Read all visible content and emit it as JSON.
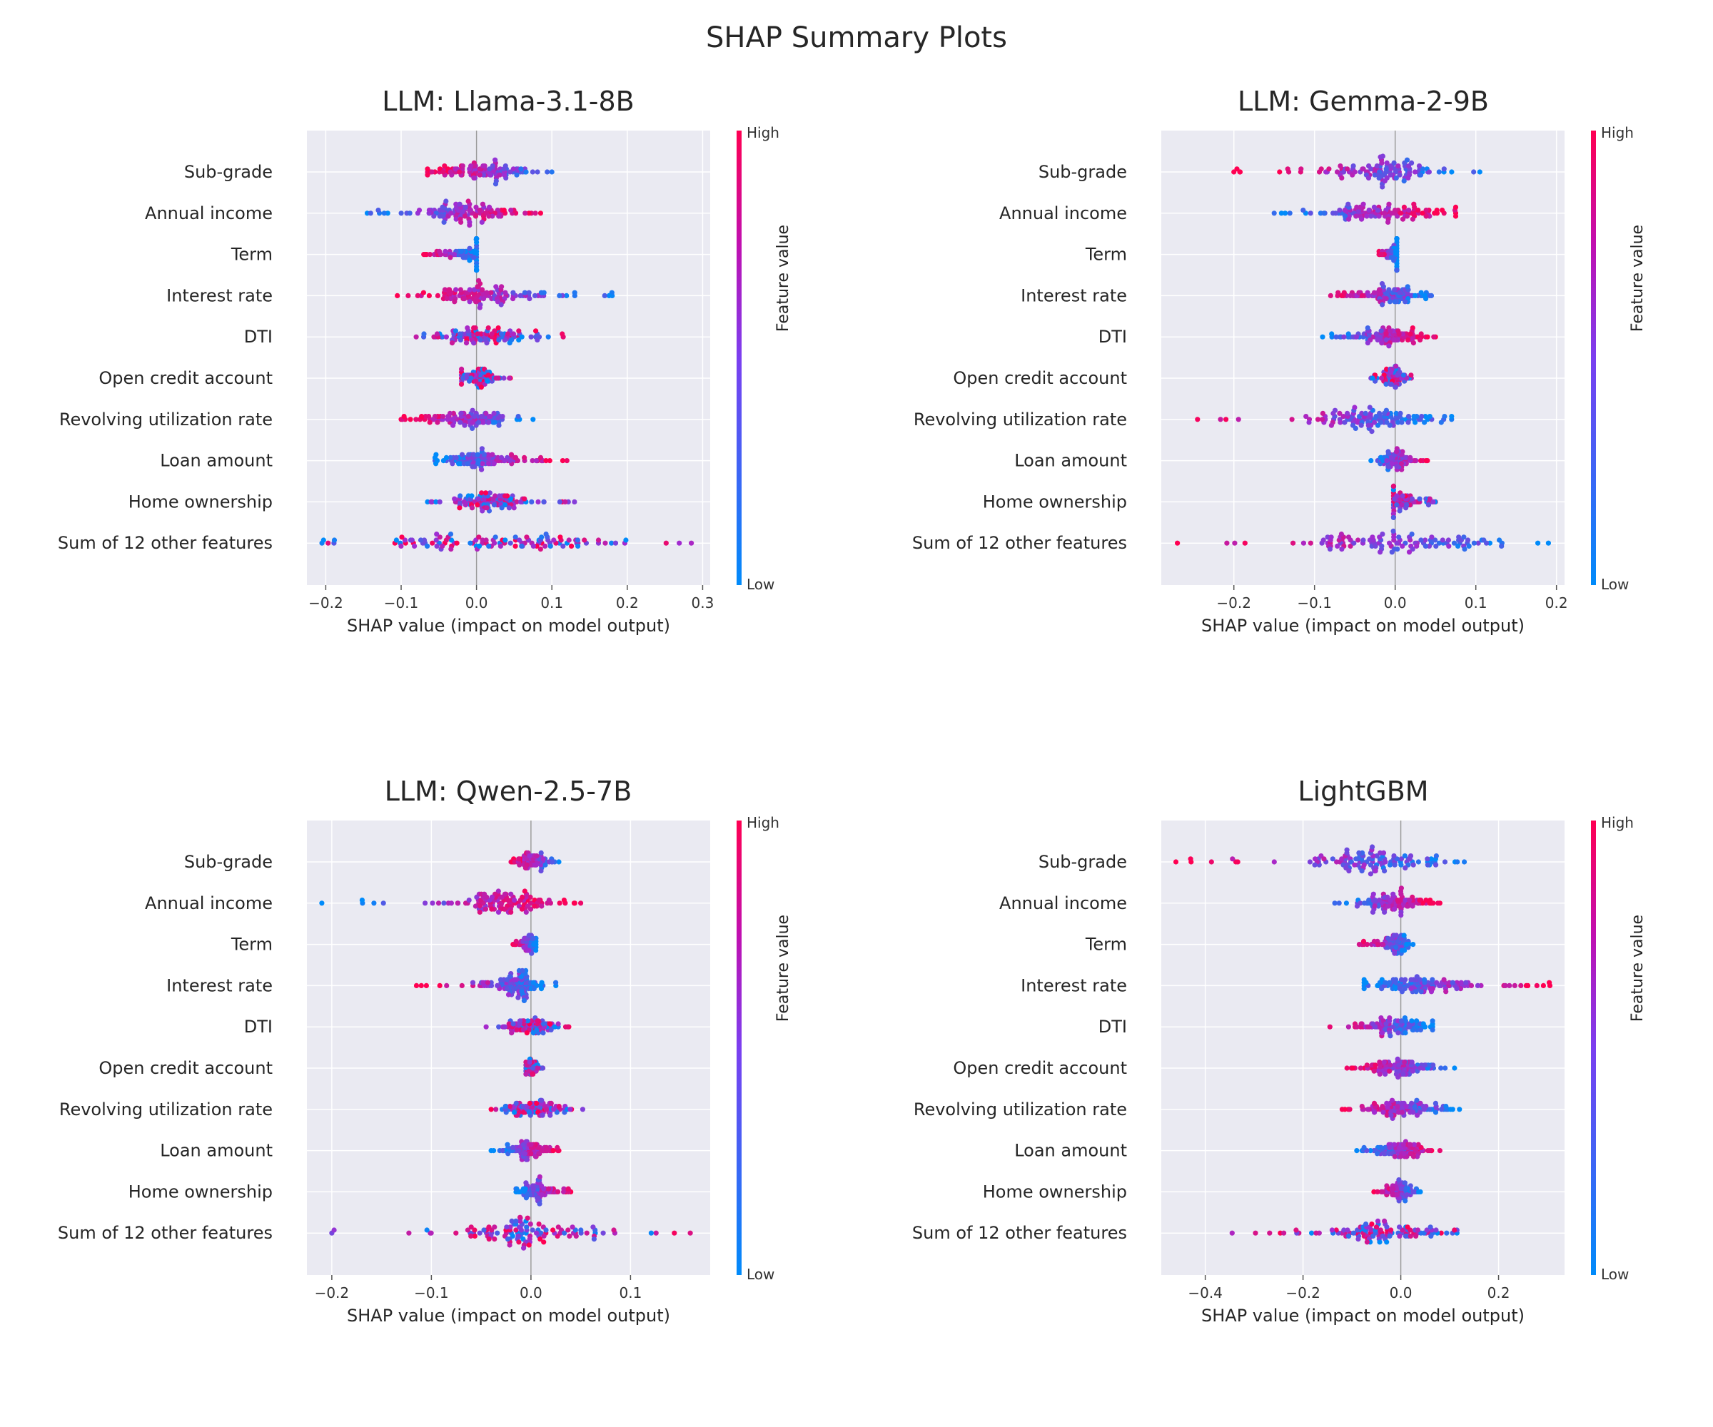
{
  "title": "SHAP Summary Plots",
  "colors": {
    "high": "#ff0052",
    "mid": "#a12cd2",
    "low": "#008bfa",
    "panel": "#eaeaf2",
    "grid": "#ffffff"
  },
  "chart_data": [
    {
      "type": "scatter",
      "title": "LLM: Llama-3.1-8B",
      "xlabel": "SHAP value (impact on model output)",
      "xlim": [
        -0.225,
        0.31
      ],
      "xticks": [
        -0.2,
        -0.1,
        0.0,
        0.1,
        0.2,
        0.3
      ],
      "xtick_labels": [
        "−0.2",
        "−0.1",
        "0.0",
        "0.1",
        "0.2",
        "0.3"
      ],
      "colorbar_label": "Feature value",
      "colorbar_high": "High",
      "colorbar_low": "Low",
      "features": [
        {
          "name": "Sub-grade",
          "min": -0.065,
          "max": 0.1,
          "direction": -1,
          "spread": 0.035
        },
        {
          "name": "Annual income",
          "min": -0.145,
          "max": 0.085,
          "direction": 1,
          "spread": 0.04
        },
        {
          "name": "Term",
          "min": -0.07,
          "max": 0.0,
          "direction": -1,
          "spread": 0.02
        },
        {
          "name": "Interest rate",
          "min": -0.105,
          "max": 0.18,
          "direction": -1,
          "spread": 0.05
        },
        {
          "name": "DTI",
          "min": -0.08,
          "max": 0.115,
          "direction": 0,
          "spread": 0.035
        },
        {
          "name": "Open credit account",
          "min": -0.02,
          "max": 0.045,
          "direction": 0,
          "spread": 0.012
        },
        {
          "name": "Revolving utilization rate",
          "min": -0.1,
          "max": 0.075,
          "direction": -1,
          "spread": 0.03
        },
        {
          "name": "Loan amount",
          "min": -0.055,
          "max": 0.12,
          "direction": 1,
          "spread": 0.035
        },
        {
          "name": "Home ownership",
          "min": -0.065,
          "max": 0.13,
          "direction": 0,
          "spread": 0.03
        },
        {
          "name": "Sum of 12 other features",
          "min": -0.205,
          "max": 0.285,
          "direction": 0,
          "spread": 0.09
        }
      ]
    },
    {
      "type": "scatter",
      "title": "LLM: Gemma-2-9B",
      "xlabel": "SHAP value (impact on model output)",
      "xlim": [
        -0.29,
        0.21
      ],
      "xticks": [
        -0.2,
        -0.1,
        0.0,
        0.1,
        0.2
      ],
      "xtick_labels": [
        "−0.2",
        "−0.1",
        "0.0",
        "0.1",
        "0.2"
      ],
      "colorbar_label": "Feature value",
      "colorbar_high": "High",
      "colorbar_low": "Low",
      "features": [
        {
          "name": "Sub-grade",
          "min": -0.2,
          "max": 0.105,
          "direction": -1,
          "spread": 0.04
        },
        {
          "name": "Annual income",
          "min": -0.15,
          "max": 0.075,
          "direction": 1,
          "spread": 0.04
        },
        {
          "name": "Term",
          "min": -0.02,
          "max": 0.002,
          "direction": -1,
          "spread": 0.008
        },
        {
          "name": "Interest rate",
          "min": -0.08,
          "max": 0.045,
          "direction": -1,
          "spread": 0.025
        },
        {
          "name": "DTI",
          "min": -0.09,
          "max": 0.05,
          "direction": 1,
          "spread": 0.025
        },
        {
          "name": "Open credit account",
          "min": -0.03,
          "max": 0.02,
          "direction": 0,
          "spread": 0.008
        },
        {
          "name": "Revolving utilization rate",
          "min": -0.245,
          "max": 0.07,
          "direction": -1,
          "spread": 0.05
        },
        {
          "name": "Loan amount",
          "min": -0.03,
          "max": 0.04,
          "direction": 1,
          "spread": 0.01
        },
        {
          "name": "Home ownership",
          "min": -0.002,
          "max": 0.05,
          "direction": 0,
          "spread": 0.01
        },
        {
          "name": "Sum of 12 other features",
          "min": -0.27,
          "max": 0.19,
          "direction": -1,
          "spread": 0.08
        }
      ]
    },
    {
      "type": "scatter",
      "title": "LLM: Qwen-2.5-7B",
      "xlabel": "SHAP value (impact on model output)",
      "xlim": [
        -0.225,
        0.18
      ],
      "xticks": [
        -0.2,
        -0.1,
        0.0,
        0.1
      ],
      "xtick_labels": [
        "−0.2",
        "−0.1",
        "0.0",
        "0.1"
      ],
      "colorbar_label": "Feature value",
      "colorbar_high": "High",
      "colorbar_low": "Low",
      "features": [
        {
          "name": "Sub-grade",
          "min": -0.02,
          "max": 0.028,
          "direction": -1,
          "spread": 0.008
        },
        {
          "name": "Annual income",
          "min": -0.21,
          "max": 0.05,
          "direction": 1,
          "spread": 0.025
        },
        {
          "name": "Term",
          "min": -0.018,
          "max": 0.005,
          "direction": -1,
          "spread": 0.004
        },
        {
          "name": "Interest rate",
          "min": -0.115,
          "max": 0.025,
          "direction": -1,
          "spread": 0.015
        },
        {
          "name": "DTI",
          "min": -0.045,
          "max": 0.038,
          "direction": 0,
          "spread": 0.012
        },
        {
          "name": "Open credit account",
          "min": -0.005,
          "max": 0.012,
          "direction": 0,
          "spread": 0.004
        },
        {
          "name": "Revolving utilization rate",
          "min": -0.04,
          "max": 0.052,
          "direction": 0,
          "spread": 0.014
        },
        {
          "name": "Loan amount",
          "min": -0.04,
          "max": 0.028,
          "direction": 1,
          "spread": 0.012
        },
        {
          "name": "Home ownership",
          "min": -0.015,
          "max": 0.04,
          "direction": 1,
          "spread": 0.01
        },
        {
          "name": "Sum of 12 other features",
          "min": -0.2,
          "max": 0.16,
          "direction": 0,
          "spread": 0.045
        }
      ]
    },
    {
      "type": "scatter",
      "title": "LightGBM",
      "xlabel": "SHAP value (impact on model output)",
      "xlim": [
        -0.49,
        0.335
      ],
      "xticks": [
        -0.4,
        -0.2,
        0.0,
        0.2
      ],
      "xtick_labels": [
        "−0.4",
        "−0.2",
        "0.0",
        "0.2"
      ],
      "colorbar_label": "Feature value",
      "colorbar_high": "High",
      "colorbar_low": "Low",
      "features": [
        {
          "name": "Sub-grade",
          "min": -0.46,
          "max": 0.13,
          "direction": -1,
          "spread": 0.07
        },
        {
          "name": "Annual income",
          "min": -0.135,
          "max": 0.08,
          "direction": 1,
          "spread": 0.04
        },
        {
          "name": "Term",
          "min": -0.085,
          "max": 0.025,
          "direction": -1,
          "spread": 0.015
        },
        {
          "name": "Interest rate",
          "min": -0.075,
          "max": 0.305,
          "direction": 1,
          "spread": 0.06
        },
        {
          "name": "DTI",
          "min": -0.145,
          "max": 0.065,
          "direction": -1,
          "spread": 0.04
        },
        {
          "name": "Open credit account",
          "min": -0.11,
          "max": 0.11,
          "direction": -1,
          "spread": 0.04
        },
        {
          "name": "Revolving utilization rate",
          "min": -0.12,
          "max": 0.12,
          "direction": -1,
          "spread": 0.045
        },
        {
          "name": "Loan amount",
          "min": -0.09,
          "max": 0.08,
          "direction": 1,
          "spread": 0.03
        },
        {
          "name": "Home ownership",
          "min": -0.055,
          "max": 0.04,
          "direction": -1,
          "spread": 0.015
        },
        {
          "name": "Sum of 12 other features",
          "min": -0.345,
          "max": 0.115,
          "direction": 0,
          "spread": 0.06
        }
      ]
    }
  ]
}
